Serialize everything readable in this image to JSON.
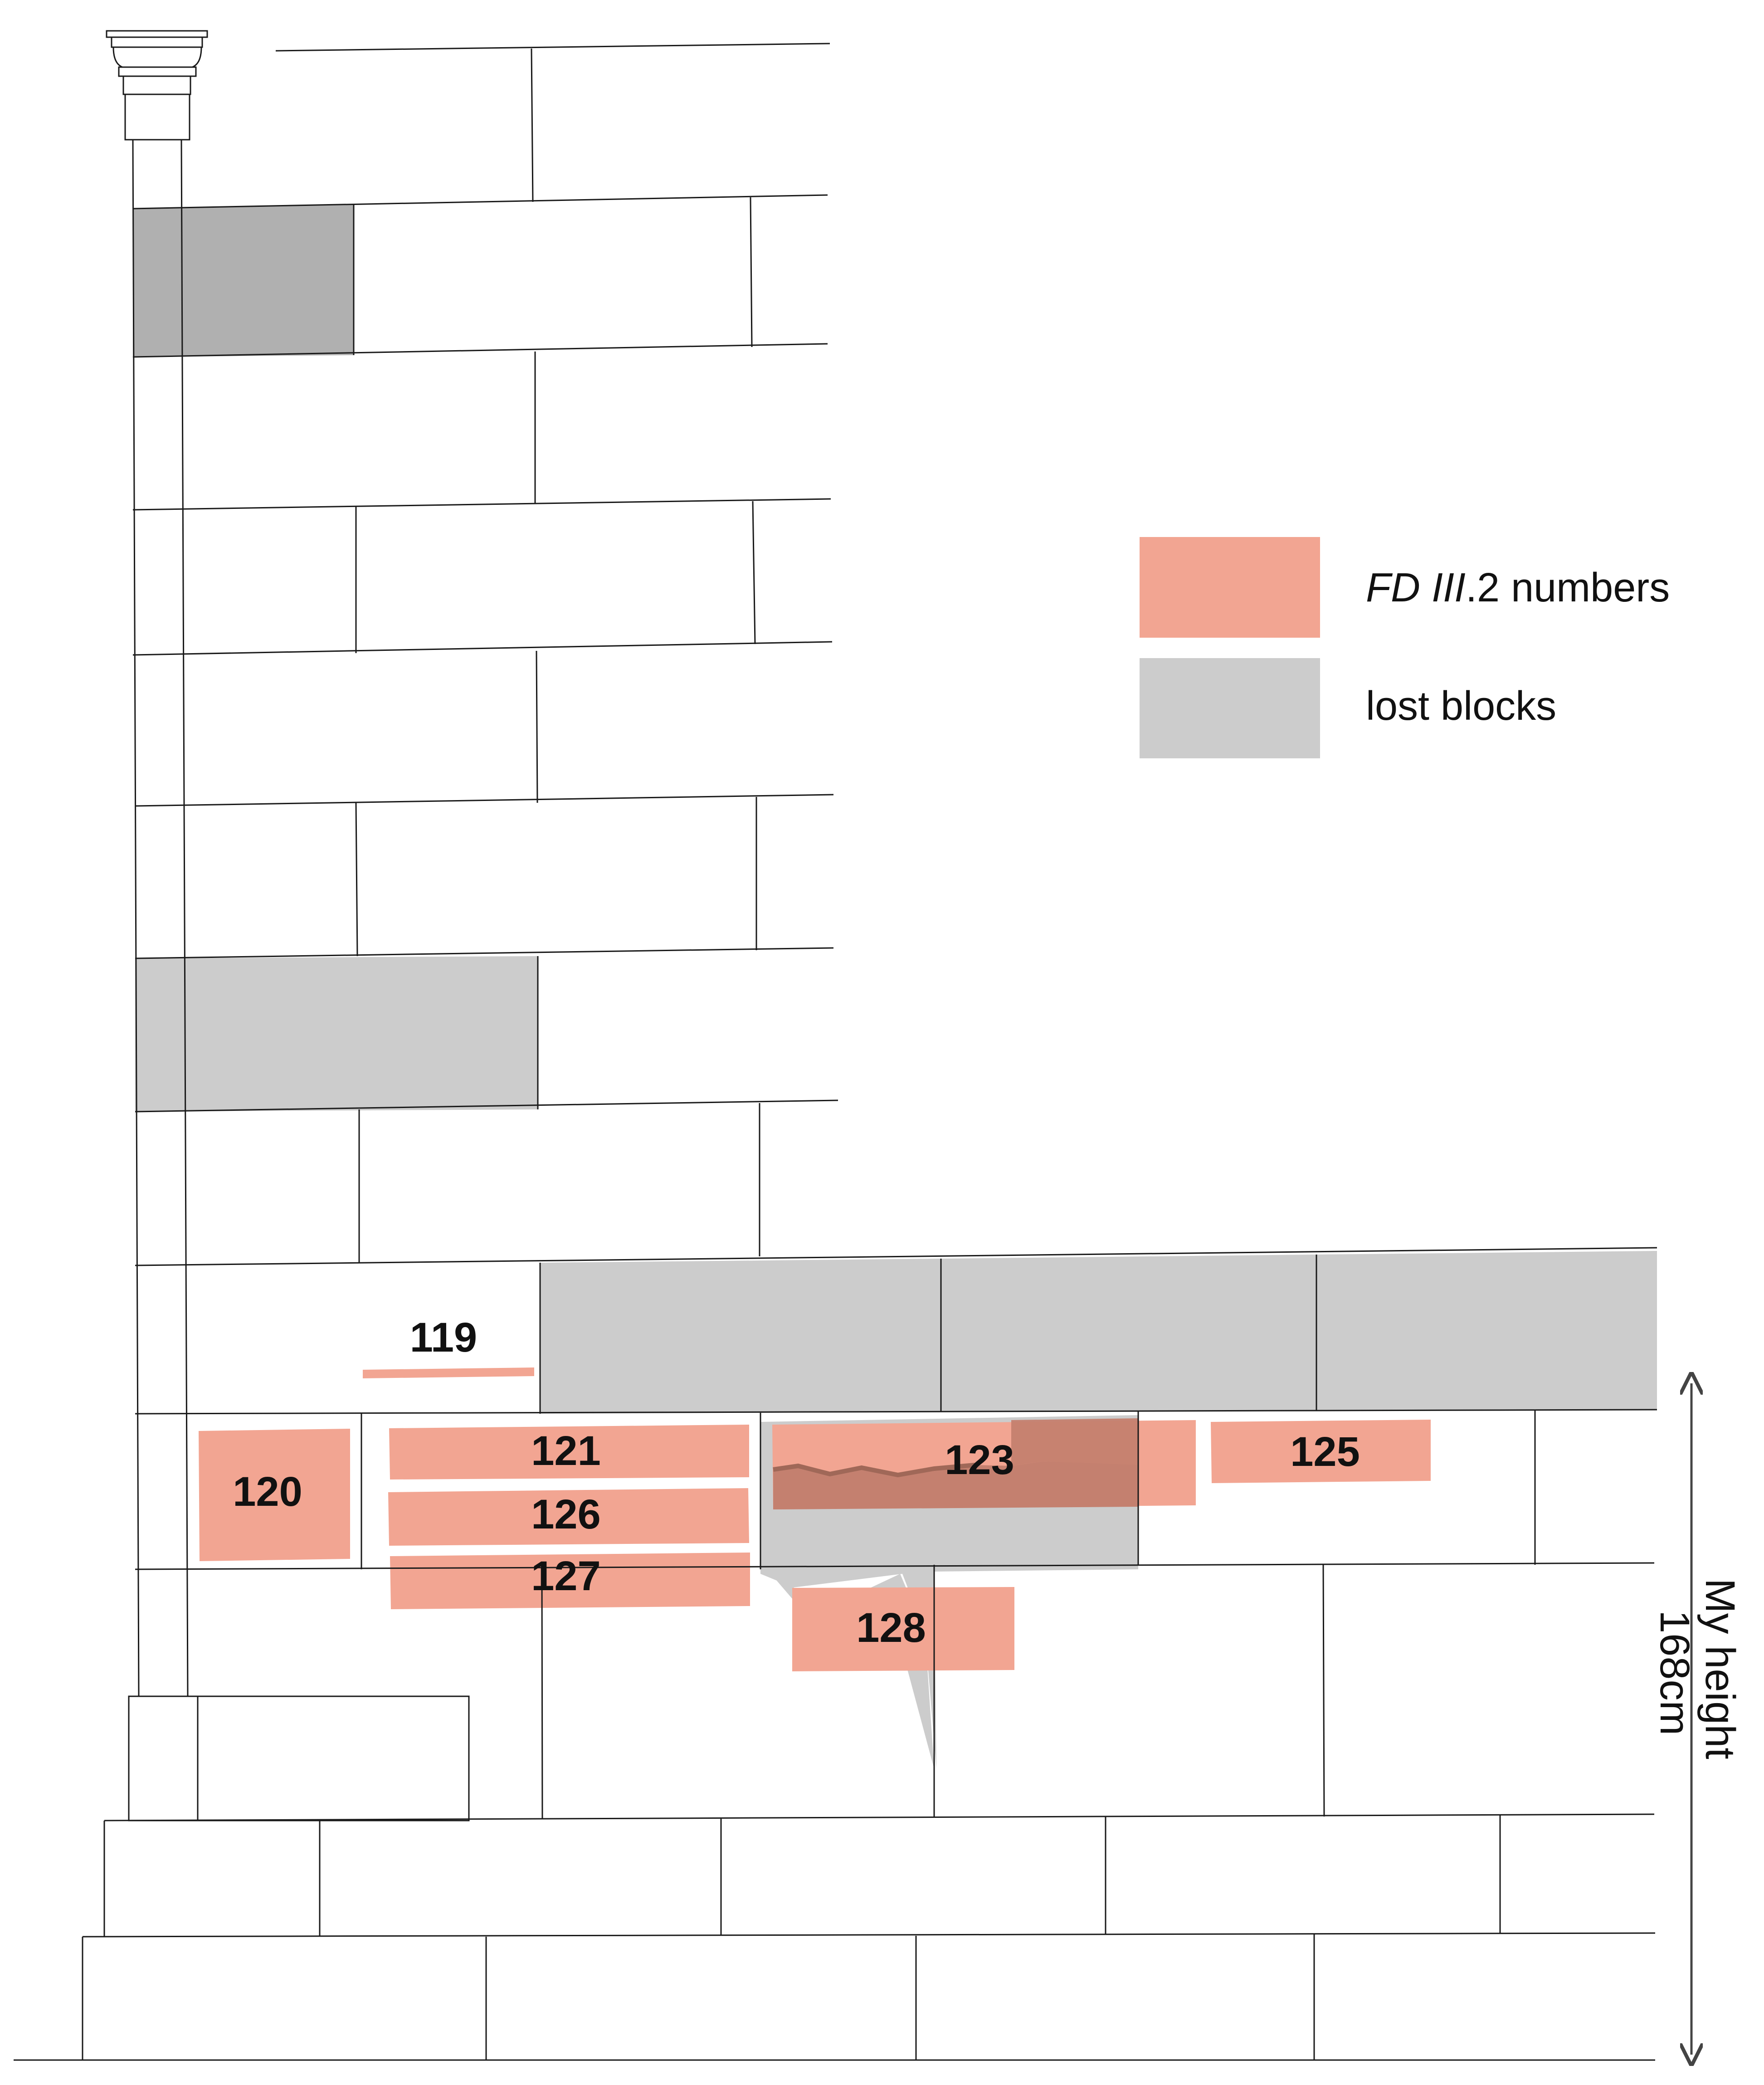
{
  "colors": {
    "inscribed_block": "#f2a592",
    "lost_block": "#cccccc",
    "lost_block_dark": "#b0b0b0",
    "overlap": "#c4806f",
    "line": "#1a1a1a",
    "arrow": "#444444"
  },
  "legend": {
    "items": [
      {
        "label_italic": "FD III",
        "label_rest": ".2 numbers",
        "swatch": "inscribed_block"
      },
      {
        "label": "lost blocks",
        "swatch": "lost_block"
      }
    ]
  },
  "blocks": [
    {
      "number": "119"
    },
    {
      "number": "120"
    },
    {
      "number": "121"
    },
    {
      "number": "126"
    },
    {
      "number": "127"
    },
    {
      "number": "123"
    },
    {
      "number": "125"
    },
    {
      "number": "128"
    }
  ],
  "scale": {
    "line1": "My height",
    "line2": "168cm"
  }
}
